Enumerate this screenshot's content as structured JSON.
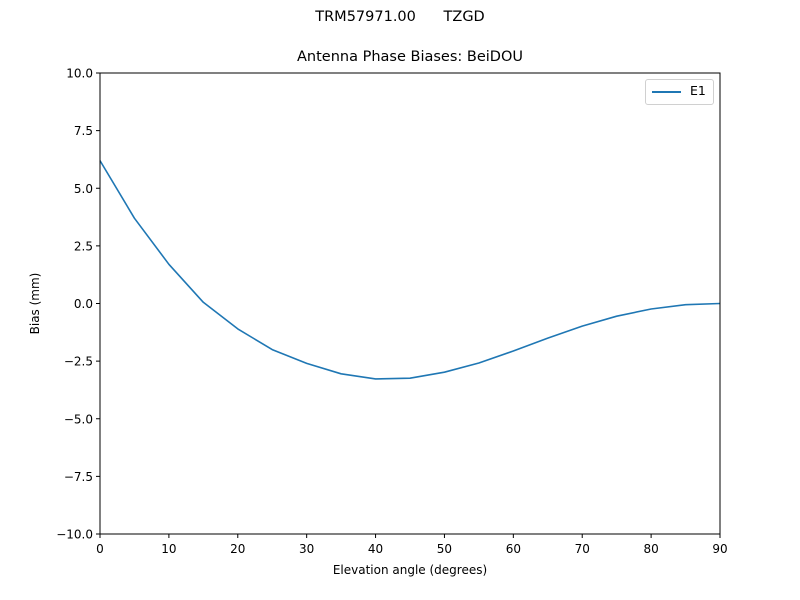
{
  "figure": {
    "suptitle": "TRM57971.00      TZGD",
    "title": "Antenna Phase Biases: BeiDOU"
  },
  "chart_data": {
    "type": "line",
    "title": "Antenna Phase Biases: BeiDOU",
    "suptitle": "TRM57971.00      TZGD",
    "xlabel": "Elevation angle (degrees)",
    "ylabel": "Bias (mm)",
    "xlim": [
      0,
      90
    ],
    "ylim": [
      -10,
      10
    ],
    "xticks": [
      0,
      10,
      20,
      30,
      40,
      50,
      60,
      70,
      80,
      90
    ],
    "xtick_labels": [
      "0",
      "10",
      "20",
      "30",
      "40",
      "50",
      "60",
      "70",
      "80",
      "90"
    ],
    "yticks": [
      10,
      7.5,
      5,
      2.5,
      0,
      -2.5,
      -5,
      -7.5,
      -10
    ],
    "ytick_labels": [
      "10.0",
      "7.5",
      "5.0",
      "2.5",
      "0.0",
      "−2.5",
      "−5.0",
      "−7.5",
      "−10.0"
    ],
    "grid": false,
    "legend_position": "upper right",
    "x": [
      0,
      5,
      10,
      15,
      20,
      25,
      30,
      35,
      40,
      45,
      50,
      55,
      60,
      65,
      70,
      75,
      80,
      85,
      90
    ],
    "series": [
      {
        "name": "E1",
        "color": "#1f77b4",
        "values": [
          6.2,
          3.7,
          1.7,
          0.05,
          -1.1,
          -2.0,
          -2.6,
          -3.05,
          -3.27,
          -3.24,
          -2.98,
          -2.58,
          -2.06,
          -1.5,
          -0.98,
          -0.55,
          -0.24,
          -0.05,
          0.0
        ]
      }
    ]
  }
}
